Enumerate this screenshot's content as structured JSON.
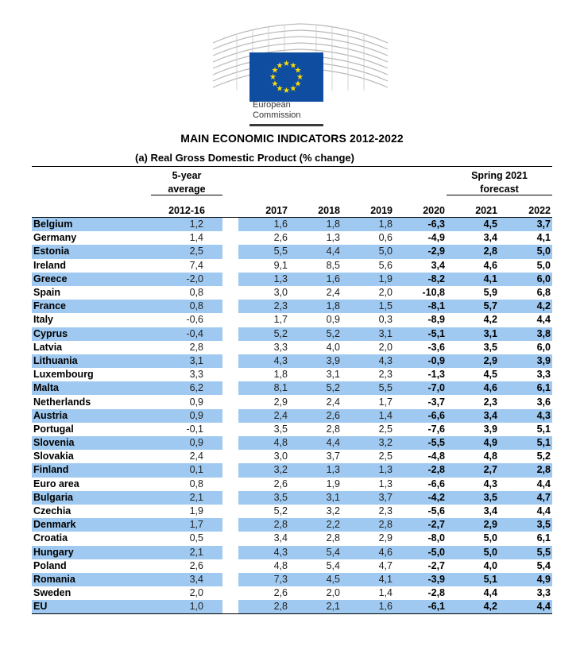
{
  "header": {
    "org_line1": "European",
    "org_line2": "Commission",
    "title": "MAIN ECONOMIC INDICATORS 2012-2022",
    "subtitle": "(a) Real Gross Domestic Product (% change)"
  },
  "columns": {
    "avg_line1": "5-year",
    "avg_line2": "average",
    "avg_period": "2012-16",
    "forecast_line1": "Spring 2021",
    "forecast_line2": "forecast",
    "years": [
      "2017",
      "2018",
      "2019",
      "2020",
      "2021",
      "2022"
    ]
  },
  "colors": {
    "row_shade": "#9fc9f0",
    "eu_blue": "#0f4da1",
    "eu_star": "#ffde00"
  },
  "rows": [
    {
      "name": "Belgium",
      "avg": "1,2",
      "v": [
        "1,6",
        "1,8",
        "1,8",
        "-6,3",
        "4,5",
        "3,7"
      ]
    },
    {
      "name": "Germany",
      "avg": "1,4",
      "v": [
        "2,6",
        "1,3",
        "0,6",
        "-4,9",
        "3,4",
        "4,1"
      ]
    },
    {
      "name": "Estonia",
      "avg": "2,5",
      "v": [
        "5,5",
        "4,4",
        "5,0",
        "-2,9",
        "2,8",
        "5,0"
      ]
    },
    {
      "name": "Ireland",
      "avg": "7,4",
      "v": [
        "9,1",
        "8,5",
        "5,6",
        "3,4",
        "4,6",
        "5,0"
      ]
    },
    {
      "name": "Greece",
      "avg": "-2,0",
      "v": [
        "1,3",
        "1,6",
        "1,9",
        "-8,2",
        "4,1",
        "6,0"
      ]
    },
    {
      "name": "Spain",
      "avg": "0,8",
      "v": [
        "3,0",
        "2,4",
        "2,0",
        "-10,8",
        "5,9",
        "6,8"
      ]
    },
    {
      "name": "France",
      "avg": "0,8",
      "v": [
        "2,3",
        "1,8",
        "1,5",
        "-8,1",
        "5,7",
        "4,2"
      ]
    },
    {
      "name": "Italy",
      "avg": "-0,6",
      "v": [
        "1,7",
        "0,9",
        "0,3",
        "-8,9",
        "4,2",
        "4,4"
      ]
    },
    {
      "name": "Cyprus",
      "avg": "-0,4",
      "v": [
        "5,2",
        "5,2",
        "3,1",
        "-5,1",
        "3,1",
        "3,8"
      ]
    },
    {
      "name": "Latvia",
      "avg": "2,8",
      "v": [
        "3,3",
        "4,0",
        "2,0",
        "-3,6",
        "3,5",
        "6,0"
      ]
    },
    {
      "name": "Lithuania",
      "avg": "3,1",
      "v": [
        "4,3",
        "3,9",
        "4,3",
        "-0,9",
        "2,9",
        "3,9"
      ]
    },
    {
      "name": "Luxembourg",
      "avg": "3,3",
      "v": [
        "1,8",
        "3,1",
        "2,3",
        "-1,3",
        "4,5",
        "3,3"
      ]
    },
    {
      "name": "Malta",
      "avg": "6,2",
      "v": [
        "8,1",
        "5,2",
        "5,5",
        "-7,0",
        "4,6",
        "6,1"
      ]
    },
    {
      "name": "Netherlands",
      "avg": "0,9",
      "v": [
        "2,9",
        "2,4",
        "1,7",
        "-3,7",
        "2,3",
        "3,6"
      ]
    },
    {
      "name": "Austria",
      "avg": "0,9",
      "v": [
        "2,4",
        "2,6",
        "1,4",
        "-6,6",
        "3,4",
        "4,3"
      ]
    },
    {
      "name": "Portugal",
      "avg": "-0,1",
      "v": [
        "3,5",
        "2,8",
        "2,5",
        "-7,6",
        "3,9",
        "5,1"
      ]
    },
    {
      "name": "Slovenia",
      "avg": "0,9",
      "v": [
        "4,8",
        "4,4",
        "3,2",
        "-5,5",
        "4,9",
        "5,1"
      ]
    },
    {
      "name": "Slovakia",
      "avg": "2,4",
      "v": [
        "3,0",
        "3,7",
        "2,5",
        "-4,8",
        "4,8",
        "5,2"
      ]
    },
    {
      "name": "Finland",
      "avg": "0,1",
      "v": [
        "3,2",
        "1,3",
        "1,3",
        "-2,8",
        "2,7",
        "2,8"
      ]
    },
    {
      "name": "Euro area",
      "avg": "0,8",
      "v": [
        "2,6",
        "1,9",
        "1,3",
        "-6,6",
        "4,3",
        "4,4"
      ]
    },
    {
      "name": "Bulgaria",
      "avg": "2,1",
      "v": [
        "3,5",
        "3,1",
        "3,7",
        "-4,2",
        "3,5",
        "4,7"
      ]
    },
    {
      "name": "Czechia",
      "avg": "1,9",
      "v": [
        "5,2",
        "3,2",
        "2,3",
        "-5,6",
        "3,4",
        "4,4"
      ]
    },
    {
      "name": "Denmark",
      "avg": "1,7",
      "v": [
        "2,8",
        "2,2",
        "2,8",
        "-2,7",
        "2,9",
        "3,5"
      ]
    },
    {
      "name": "Croatia",
      "avg": "0,5",
      "v": [
        "3,4",
        "2,8",
        "2,9",
        "-8,0",
        "5,0",
        "6,1"
      ]
    },
    {
      "name": "Hungary",
      "avg": "2,1",
      "v": [
        "4,3",
        "5,4",
        "4,6",
        "-5,0",
        "5,0",
        "5,5"
      ]
    },
    {
      "name": "Poland",
      "avg": "2,6",
      "v": [
        "4,8",
        "5,4",
        "4,7",
        "-2,7",
        "4,0",
        "5,4"
      ]
    },
    {
      "name": "Romania",
      "avg": "3,4",
      "v": [
        "7,3",
        "4,5",
        "4,1",
        "-3,9",
        "5,1",
        "4,9"
      ]
    },
    {
      "name": "Sweden",
      "avg": "2,0",
      "v": [
        "2,6",
        "2,0",
        "1,4",
        "-2,8",
        "4,4",
        "3,3"
      ]
    },
    {
      "name": "EU",
      "avg": "1,0",
      "v": [
        "2,8",
        "2,1",
        "1,6",
        "-6,1",
        "4,2",
        "4,4"
      ]
    }
  ]
}
